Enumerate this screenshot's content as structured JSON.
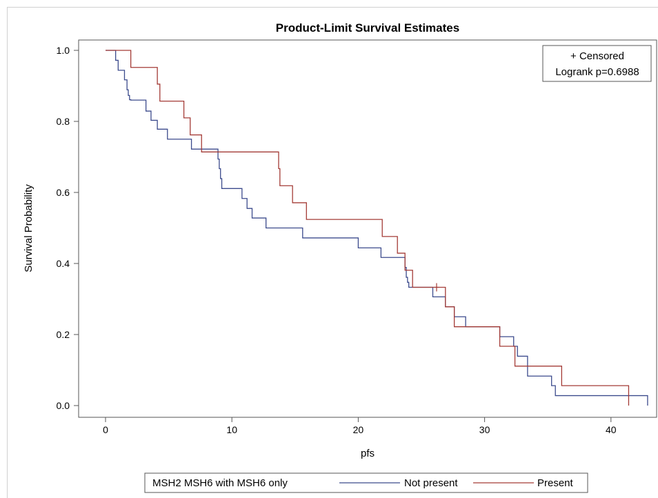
{
  "chart_data": {
    "type": "line",
    "title": "Product-Limit Survival Estimates",
    "xlabel": "pfs",
    "ylabel": "Survival Probability",
    "xlim": [
      0,
      43
    ],
    "ylim": [
      0,
      1
    ],
    "x_ticks": [
      "0",
      "10",
      "20",
      "30",
      "40"
    ],
    "y_ticks": [
      "0.0",
      "0.2",
      "0.4",
      "0.6",
      "0.8",
      "1.0"
    ],
    "inset": {
      "censored_label": "+ Censored",
      "logrank_label": "Logrank p=0.6988"
    },
    "legend": {
      "title": "MSH2 MSH6 with MSH6 only",
      "placement": "bottom"
    },
    "series": [
      {
        "name": "Not present",
        "color": "#3b4a8c",
        "x": [
          0,
          0.8,
          1.0,
          1.5,
          1.7,
          1.8,
          1.9,
          2.0,
          3.2,
          3.6,
          4.1,
          4.9,
          6.8,
          8.9,
          9.0,
          9.1,
          9.2,
          9.4,
          10.8,
          11.2,
          11.6,
          12.7,
          15.6,
          20.0,
          21.8,
          23.7,
          23.8,
          23.9,
          24.0,
          25.9,
          26.6,
          26.9,
          27.6,
          28.5,
          31.2,
          32.3,
          32.6,
          32.9,
          33.4,
          35.3,
          35.6,
          36.0,
          42.9
        ],
        "y": [
          1.0,
          0.972,
          0.944,
          0.917,
          0.889,
          0.873,
          0.861,
          0.86,
          0.829,
          0.803,
          0.778,
          0.75,
          0.722,
          0.694,
          0.667,
          0.639,
          0.611,
          0.611,
          0.583,
          0.555,
          0.528,
          0.5,
          0.472,
          0.444,
          0.417,
          0.389,
          0.361,
          0.347,
          0.333,
          0.306,
          0.306,
          0.278,
          0.25,
          0.222,
          0.194,
          0.167,
          0.139,
          0.139,
          0.083,
          0.056,
          0.028,
          0.028,
          0.0
        ],
        "censored_x": []
      },
      {
        "name": "Present",
        "color": "#a33a35",
        "x": [
          0,
          2.0,
          4.1,
          4.3,
          6.2,
          6.7,
          7.6,
          13.7,
          13.8,
          14.8,
          15.9,
          21.9,
          23.1,
          23.7,
          24.3,
          26.9,
          27.6,
          31.2,
          32.4,
          36.1,
          41.4
        ],
        "y": [
          1.0,
          0.952,
          0.905,
          0.857,
          0.81,
          0.762,
          0.714,
          0.667,
          0.619,
          0.571,
          0.524,
          0.476,
          0.429,
          0.381,
          0.333,
          0.278,
          0.222,
          0.167,
          0.111,
          0.056,
          0.0
        ],
        "censored_x": [
          26.2
        ]
      }
    ]
  }
}
